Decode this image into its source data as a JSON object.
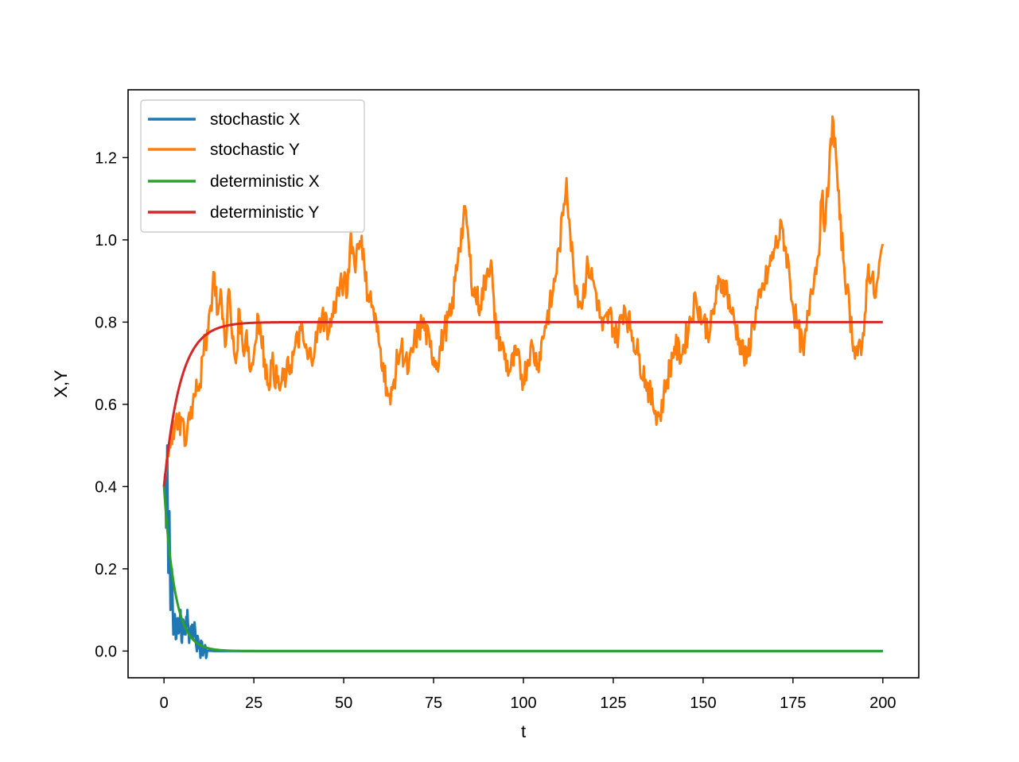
{
  "chart_data": {
    "type": "line",
    "xlabel": "t",
    "ylabel": "X,Y",
    "xlim": [
      -10,
      210
    ],
    "ylim": [
      -0.065,
      1.365
    ],
    "xticks": [
      0,
      25,
      50,
      75,
      100,
      125,
      150,
      175,
      200
    ],
    "yticks": [
      0.0,
      0.2,
      0.4,
      0.6,
      0.8,
      1.0,
      1.2
    ],
    "ytick_labels": [
      "0.0",
      "0.2",
      "0.4",
      "0.6",
      "0.8",
      "1.0",
      "1.2"
    ],
    "grid": false,
    "legend_position": "upper-left",
    "series": [
      {
        "name": "stochastic X",
        "color": "#1f77b4",
        "x": [
          0,
          0.3,
          0.6,
          0.9,
          1.2,
          1.5,
          1.8,
          2.2,
          2.6,
          3.0,
          3.4,
          3.8,
          4.2,
          4.6,
          5.0,
          5.5,
          6.0,
          6.5,
          7.0,
          7.5,
          8.0,
          8.5,
          9.0,
          9.5,
          10,
          11,
          12,
          13,
          14,
          16,
          18,
          20,
          25,
          30,
          40,
          60,
          100,
          150,
          200
        ],
        "y": [
          0.4,
          0.43,
          0.3,
          0.5,
          0.19,
          0.34,
          0.1,
          0.2,
          0.04,
          0.09,
          0.03,
          0.08,
          0.05,
          0.1,
          0.02,
          0.07,
          0.04,
          0.1,
          0.02,
          0.06,
          0.03,
          0.07,
          0.01,
          0.03,
          0.005,
          0.002,
          0.001,
          0.0005,
          0.0,
          0.0,
          0.0,
          0.0,
          0.0,
          0.0,
          0.0,
          0.0,
          0.0,
          0.0,
          0.0
        ]
      },
      {
        "name": "stochastic Y",
        "color": "#ff7f0e",
        "x": [
          0,
          1,
          2,
          3,
          4,
          5,
          6,
          7,
          8,
          9,
          10,
          11,
          12,
          13,
          14,
          15,
          16,
          17,
          18,
          19,
          20,
          21,
          22,
          23,
          24,
          25,
          26,
          27,
          28,
          29,
          30,
          32,
          34,
          36,
          38,
          40,
          42,
          44,
          46,
          48,
          50,
          51,
          52,
          53,
          54,
          55,
          56,
          58,
          60,
          61,
          62,
          63,
          64,
          65,
          66,
          68,
          70,
          72,
          74,
          76,
          78,
          80,
          82,
          84,
          85,
          86,
          88,
          90,
          91,
          92,
          94,
          96,
          98,
          100,
          102,
          104,
          106,
          108,
          110,
          111,
          112,
          113,
          114,
          116,
          118,
          120,
          122,
          124,
          126,
          128,
          130,
          132,
          134,
          136,
          138,
          139,
          140,
          142,
          144,
          146,
          148,
          150,
          152,
          154,
          156,
          158,
          160,
          162,
          164,
          166,
          168,
          170,
          172,
          174,
          175,
          176,
          178,
          180,
          182,
          183,
          184,
          185,
          186,
          187,
          188,
          190,
          192,
          194,
          195,
          196,
          198,
          200
        ],
        "y": [
          0.4,
          0.48,
          0.52,
          0.55,
          0.54,
          0.56,
          0.5,
          0.58,
          0.6,
          0.66,
          0.65,
          0.72,
          0.78,
          0.84,
          0.92,
          0.82,
          0.86,
          0.74,
          0.88,
          0.76,
          0.7,
          0.83,
          0.73,
          0.78,
          0.68,
          0.72,
          0.82,
          0.76,
          0.71,
          0.65,
          0.7,
          0.64,
          0.67,
          0.72,
          0.78,
          0.71,
          0.74,
          0.82,
          0.78,
          0.86,
          0.9,
          0.87,
          1.02,
          0.94,
          0.99,
          1.01,
          0.9,
          0.84,
          0.74,
          0.7,
          0.64,
          0.6,
          0.66,
          0.71,
          0.74,
          0.68,
          0.76,
          0.8,
          0.74,
          0.7,
          0.78,
          0.82,
          0.98,
          1.07,
          0.96,
          0.88,
          0.84,
          0.93,
          0.95,
          0.8,
          0.74,
          0.68,
          0.72,
          0.66,
          0.74,
          0.7,
          0.79,
          0.86,
          0.98,
          1.06,
          1.15,
          1.02,
          0.92,
          0.84,
          0.94,
          0.88,
          0.78,
          0.82,
          0.76,
          0.84,
          0.78,
          0.72,
          0.66,
          0.6,
          0.57,
          0.62,
          0.66,
          0.74,
          0.72,
          0.79,
          0.86,
          0.8,
          0.78,
          0.88,
          0.9,
          0.82,
          0.76,
          0.7,
          0.8,
          0.86,
          0.92,
          0.98,
          1.03,
          0.92,
          0.84,
          0.8,
          0.72,
          0.88,
          0.96,
          1.1,
          1.04,
          1.15,
          1.3,
          1.2,
          1.05,
          0.88,
          0.74,
          0.72,
          0.82,
          0.94,
          0.86,
          0.99
        ]
      },
      {
        "name": "deterministic X",
        "color": "#2ca02c",
        "fn": "exp-decay",
        "start": 0.4,
        "end": 0.0,
        "rate": 0.33
      },
      {
        "name": "deterministic Y",
        "color": "#d62728",
        "fn": "exp-approach",
        "start": 0.4,
        "end": 0.8,
        "rate": 0.22
      }
    ]
  }
}
